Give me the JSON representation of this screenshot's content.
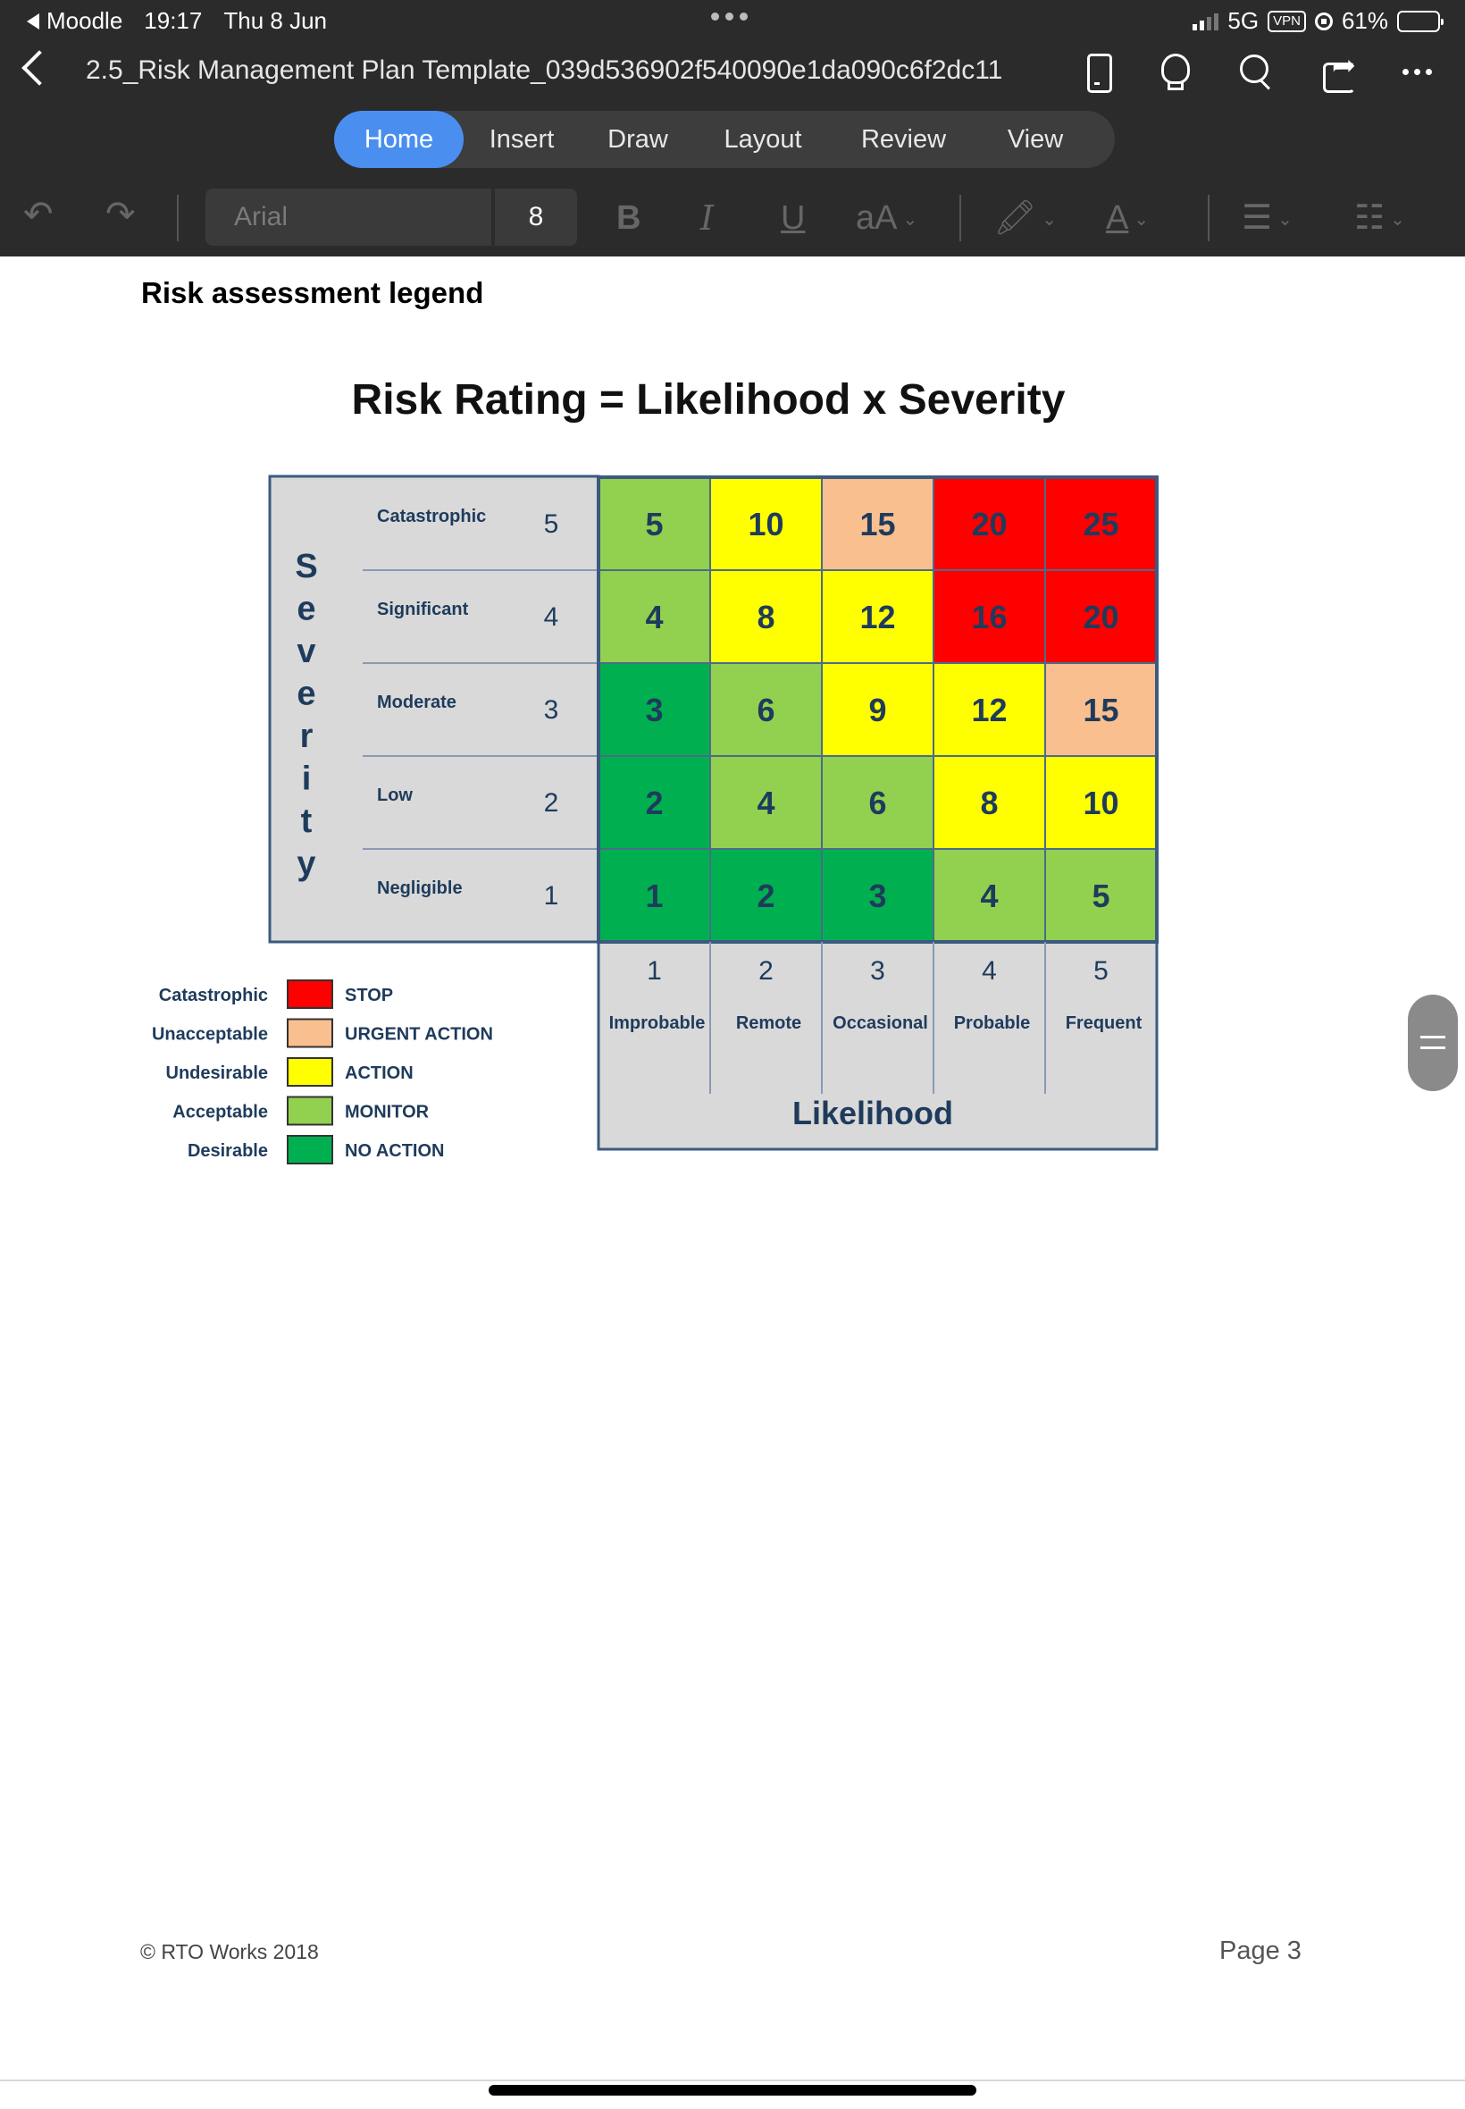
{
  "status_bar": {
    "back_app": "Moodle",
    "time": "19:17",
    "date": "Thu 8 Jun",
    "network": "5G",
    "vpn": "VPN",
    "battery": "61%"
  },
  "title_bar": {
    "document_title": "2.5_Risk Management Plan Template_039d536902f540090e1da090c6f2dc11"
  },
  "ribbon": {
    "tabs": [
      "Home",
      "Insert",
      "Draw",
      "Layout",
      "Review",
      "View"
    ],
    "active_tab": "Home"
  },
  "format_toolbar": {
    "font_name": "Arial",
    "font_size": "8",
    "bold": "B",
    "italic": "I",
    "underline": "U",
    "text_size": "aA"
  },
  "document": {
    "heading": "Risk assessment legend",
    "footer_left": "© RTO Works 2018",
    "footer_right": "Page 3"
  },
  "chart_data": {
    "type": "heatmap",
    "title": "Risk Rating = Likelihood x Severity",
    "ylabel": "Severity",
    "xlabel": "Likelihood",
    "severity_levels": [
      {
        "name": "Catastrophic",
        "value": 5
      },
      {
        "name": "Significant",
        "value": 4
      },
      {
        "name": "Moderate",
        "value": 3
      },
      {
        "name": "Low",
        "value": 2
      },
      {
        "name": "Negligible",
        "value": 1
      }
    ],
    "likelihood_levels": [
      {
        "name": "Improbable",
        "value": 1
      },
      {
        "name": "Remote",
        "value": 2
      },
      {
        "name": "Occasional",
        "value": 3
      },
      {
        "name": "Probable",
        "value": 4
      },
      {
        "name": "Frequent",
        "value": 5
      }
    ],
    "matrix": [
      [
        5,
        10,
        15,
        20,
        25
      ],
      [
        4,
        8,
        12,
        16,
        20
      ],
      [
        3,
        6,
        9,
        12,
        15
      ],
      [
        2,
        4,
        6,
        8,
        10
      ],
      [
        1,
        2,
        3,
        4,
        5
      ]
    ],
    "categories": [
      {
        "level": "Catastrophic",
        "action": "STOP",
        "color": "#ff0000"
      },
      {
        "level": "Unacceptable",
        "action": "URGENT ACTION",
        "color": "#f9bf8f"
      },
      {
        "level": "Undesirable",
        "action": "ACTION",
        "color": "#ffff00"
      },
      {
        "level": "Acceptable",
        "action": "MONITOR",
        "color": "#92d050"
      },
      {
        "level": "Desirable",
        "action": "NO ACTION",
        "color": "#00b050"
      }
    ],
    "cell_categories": [
      [
        "Acceptable",
        "Undesirable",
        "Unacceptable",
        "Catastrophic",
        "Catastrophic"
      ],
      [
        "Acceptable",
        "Undesirable",
        "Undesirable",
        "Catastrophic",
        "Catastrophic"
      ],
      [
        "Desirable",
        "Acceptable",
        "Undesirable",
        "Undesirable",
        "Unacceptable"
      ],
      [
        "Desirable",
        "Acceptable",
        "Acceptable",
        "Undesirable",
        "Undesirable"
      ],
      [
        "Desirable",
        "Desirable",
        "Desirable",
        "Acceptable",
        "Acceptable"
      ]
    ]
  }
}
